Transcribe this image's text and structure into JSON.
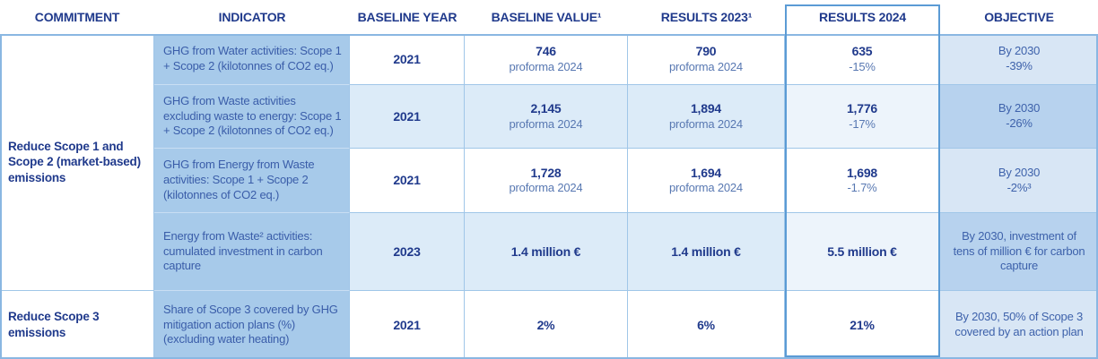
{
  "colors": {
    "header_text": "#203a8c",
    "primary_text": "#203a8c",
    "secondary_text": "#5878b2",
    "objective_text": "#3e62ab",
    "indicator_text": "#3a5da9",
    "indicator_bg": "#a7caea",
    "row_alt_bg": "#dcebf8",
    "results2024_alt_bg": "#edf4fb",
    "objective_light_bg": "#d8e6f5",
    "objective_dark_bg": "#b7d2ee",
    "grid_border": "#a0c6e8",
    "outline_border": "#8ab7e2",
    "highlight_border": "#5b9bd5"
  },
  "table": {
    "headers": {
      "commitment": "COMMITMENT",
      "indicator": "INDICATOR",
      "baseline_year": "BASELINE YEAR",
      "baseline_value": "BASELINE VALUE¹",
      "results_2023": "RESULTS 2023¹",
      "results_2024": "RESULTS 2024",
      "objective": "OBJECTIVE"
    },
    "commitments": [
      {
        "label": "Reduce Scope 1 and Scope 2 (market-based) emissions"
      },
      {
        "label": "Reduce Scope 3 emissions"
      }
    ],
    "rows": [
      {
        "indicator": "GHG from Water activities: Scope 1 + Scope 2 (kilotonnes of CO2 eq.)",
        "baseline_year": "2021",
        "baseline_value": "746",
        "baseline_value_note": "proforma 2024",
        "results_2023": "790",
        "results_2023_note": "proforma 2024",
        "results_2024": "635",
        "results_2024_note": "-15%",
        "objective": [
          "By 2030",
          "-39%"
        ]
      },
      {
        "indicator": "GHG from Waste activities excluding waste to energy: Scope 1 + Scope 2 (kilotonnes of CO2 eq.)",
        "baseline_year": "2021",
        "baseline_value": "2,145",
        "baseline_value_note": "proforma 2024",
        "results_2023": "1,894",
        "results_2023_note": "proforma 2024",
        "results_2024": "1,776",
        "results_2024_note": "-17%",
        "objective": [
          "By 2030",
          "-26%"
        ]
      },
      {
        "indicator": "GHG from Energy from Waste activities: Scope 1 + Scope 2 (kilotonnes of CO2 eq.)",
        "baseline_year": "2021",
        "baseline_value": "1,728",
        "baseline_value_note": "proforma 2024",
        "results_2023": "1,694",
        "results_2023_note": "proforma 2024",
        "results_2024": "1,698",
        "results_2024_note": "-1.7%",
        "objective": [
          "By 2030",
          "-2%³"
        ]
      },
      {
        "indicator": "Energy from Waste² activities: cumulated investment in carbon capture",
        "baseline_year": "2023",
        "baseline_value": "1.4 million €",
        "results_2023": "1.4 million €",
        "results_2024": "5.5 million €",
        "objective": [
          "By 2030, investment of tens of million € for carbon capture"
        ]
      },
      {
        "indicator": "Share of Scope 3 covered by GHG mitigation action plans (%) (excluding water heating)",
        "baseline_year": "2021",
        "baseline_value": "2%",
        "results_2023": "6%",
        "results_2024": "21%",
        "objective": [
          "By 2030, 50% of Scope 3 covered by an action plan"
        ]
      }
    ]
  }
}
